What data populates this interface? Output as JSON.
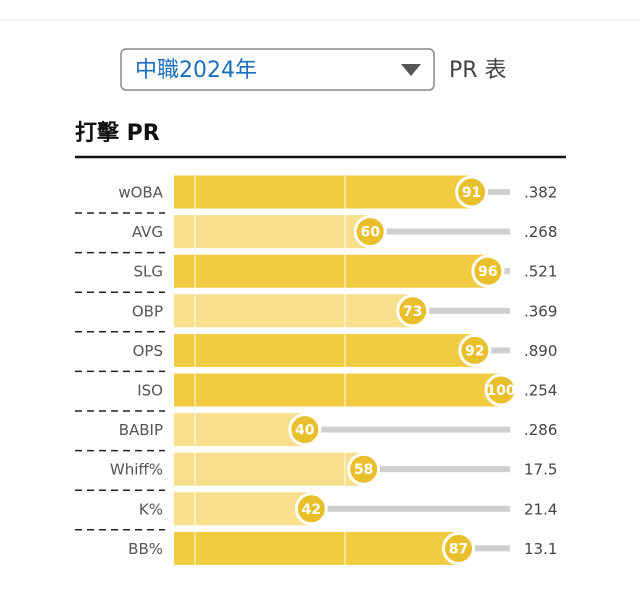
{
  "header": {
    "dropdown": "中職2024年",
    "label": "PR 表"
  },
  "chart_data": {
    "type": "bar",
    "title": "打擊 PR",
    "categories": [
      "wOBA",
      "AVG",
      "SLG",
      "OBP",
      "OPS",
      "ISO",
      "BABIP",
      "Whiff%",
      "K%",
      "BB%"
    ],
    "values": [
      91,
      60,
      96,
      73,
      92,
      100,
      40,
      58,
      42,
      87
    ],
    "stats": [
      ".382",
      ".268",
      ".521",
      ".369",
      ".890",
      ".254",
      ".286",
      "17.5",
      "21.4",
      "13.1"
    ],
    "bar_colors": [
      "#f1cb42",
      "#f7df8c",
      "#f1cb42",
      "#f7df8c",
      "#f1cb42",
      "#f1cb42",
      "#f7df8c",
      "#f7df8c",
      "#f7df8c",
      "#f1cb42"
    ],
    "marker_color": "#e9bf2c",
    "xlim": [
      0,
      100
    ]
  }
}
